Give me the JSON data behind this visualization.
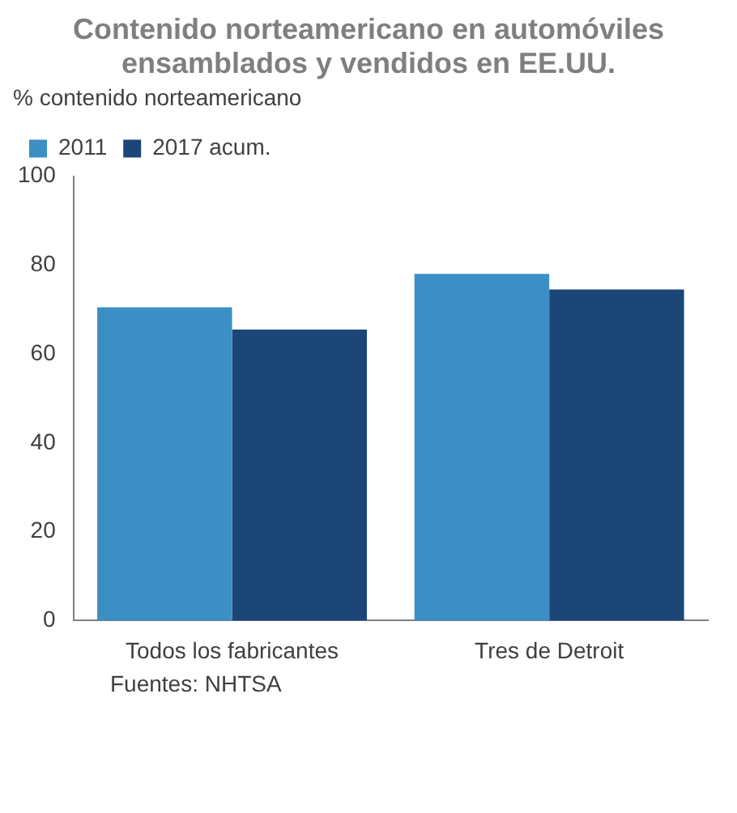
{
  "chart_data": {
    "type": "bar",
    "title": "Contenido norteamericano en automóviles ensamblados y vendidos en EE.UU.",
    "legend_title": "% contenido norteamericano",
    "categories": [
      "Todos los fabricantes",
      "Tres de Detroit"
    ],
    "series": [
      {
        "name": "2011",
        "color": "#3b8fc4",
        "values": [
          70.5,
          78
        ]
      },
      {
        "name": "2017 acum.",
        "color": "#1c4677",
        "values": [
          65.5,
          74.5
        ]
      }
    ],
    "ylim": [
      0,
      100
    ],
    "yticks": [
      0,
      20,
      40,
      60,
      80,
      100
    ],
    "grid": false,
    "legend": "top left",
    "annotations": [
      "Fuentes: NHTSA"
    ]
  }
}
